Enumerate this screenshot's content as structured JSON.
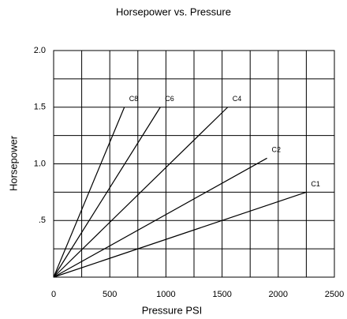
{
  "chart_data": {
    "type": "line",
    "title": "Horsepower vs. Pressure",
    "xlabel": "Pressure PSI",
    "ylabel": "Horsepower",
    "xlim": [
      0,
      2500
    ],
    "ylim": [
      0,
      2.0
    ],
    "xticks": [
      0,
      500,
      1000,
      1500,
      2000,
      2500
    ],
    "yticks": [
      {
        "value": 0.5,
        "label": ".5"
      },
      {
        "value": 1.0,
        "label": "1.0"
      },
      {
        "value": 1.5,
        "label": "1.5"
      },
      {
        "value": 2.0,
        "label": "2.0"
      }
    ],
    "grid": true,
    "series": [
      {
        "name": "C1",
        "color": "#000000",
        "x": [
          0,
          2250
        ],
        "values": [
          0,
          0.75
        ]
      },
      {
        "name": "C2",
        "color": "#000000",
        "x": [
          0,
          1900
        ],
        "values": [
          0,
          1.05
        ]
      },
      {
        "name": "C4",
        "color": "#000000",
        "x": [
          0,
          1550
        ],
        "values": [
          0,
          1.5
        ]
      },
      {
        "name": "C6",
        "color": "#000000",
        "x": [
          0,
          950
        ],
        "values": [
          0,
          1.5
        ]
      },
      {
        "name": "C8",
        "color": "#000000",
        "x": [
          0,
          630
        ],
        "values": [
          0,
          1.5
        ]
      }
    ]
  }
}
